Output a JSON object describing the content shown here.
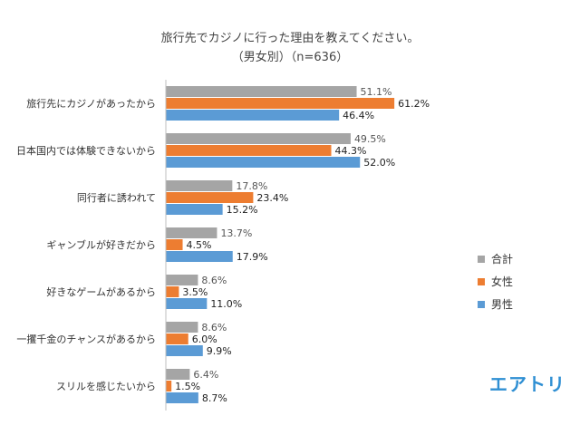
{
  "chart_data": {
    "type": "bar",
    "orientation": "horizontal",
    "title": [
      "旅行先でカジノに行った理由を教えてください。",
      "（男女別）（n=636）"
    ],
    "categories": [
      "旅行先にカジノがあったから",
      "日本国内では体験できないから",
      "同行者に誘われて",
      "ギャンブルが好きだから",
      "好きなゲームがあるから",
      "一攫千金のチャンスがあるから",
      "スリルを感じたいから"
    ],
    "series": [
      {
        "name": "合計",
        "color": "#a5a5a5",
        "values": [
          51.1,
          49.5,
          17.8,
          13.7,
          8.6,
          8.6,
          6.4
        ],
        "labels": [
          "51.1%",
          "49.5%",
          "17.8%",
          "13.7%",
          "8.6%",
          "8.6%",
          "6.4%"
        ]
      },
      {
        "name": "女性",
        "color": "#ed7d31",
        "values": [
          61.2,
          44.3,
          23.4,
          4.5,
          3.5,
          6.0,
          1.5
        ],
        "labels": [
          "61.2%",
          "44.3%",
          "23.4%",
          "4.5%",
          "3.5%",
          "6.0%",
          "1.5%"
        ]
      },
      {
        "name": "男性",
        "color": "#5b9bd5",
        "values": [
          46.4,
          52.0,
          15.2,
          17.9,
          11.0,
          9.9,
          8.7
        ],
        "labels": [
          "46.4%",
          "52.0%",
          "15.2%",
          "17.9%",
          "11.0%",
          "9.9%",
          "8.7%"
        ]
      }
    ],
    "xlim": [
      0,
      70
    ],
    "legend": "right",
    "grid": false
  },
  "logo": {
    "text": "エアトリ",
    "color": "#2f8fd3"
  }
}
